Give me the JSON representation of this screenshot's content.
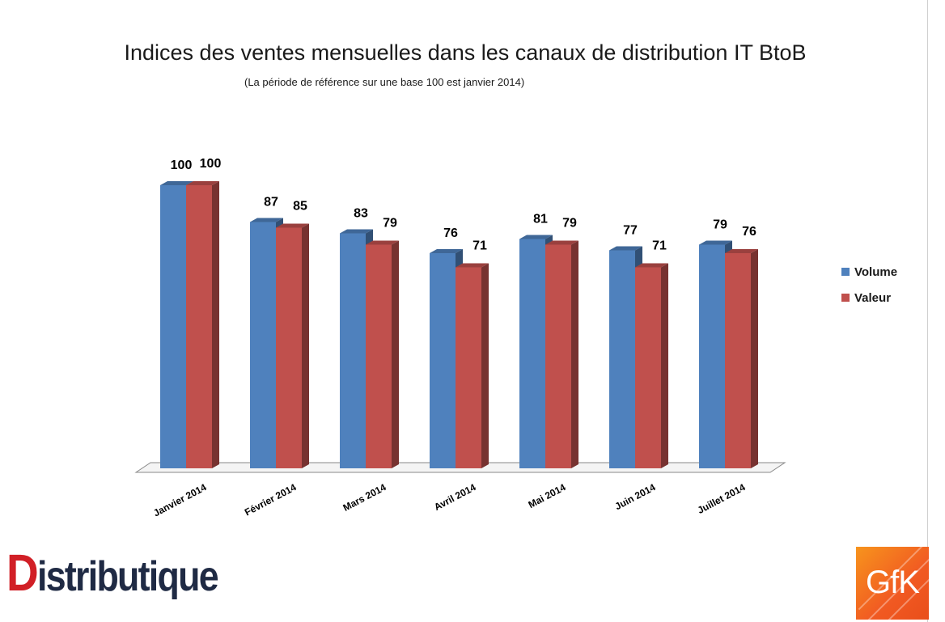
{
  "chart_data": {
    "type": "bar",
    "title": "Indices des ventes mensuelles dans les canaux de distribution IT BtoB",
    "subtitle": "(La période de référence sur une base 100 est janvier 2014)",
    "categories": [
      "Janvier 2014",
      "Février 2014",
      "Mars 2014",
      "Avril 2014",
      "Mai 2014",
      "Juin 2014",
      "Juillet 2014"
    ],
    "series": [
      {
        "name": "Volume",
        "values": [
          100,
          87,
          83,
          76,
          81,
          77,
          79
        ],
        "color": "#4f81bd"
      },
      {
        "name": "Valeur",
        "values": [
          100,
          85,
          79,
          71,
          79,
          71,
          76
        ],
        "color": "#c0504d"
      }
    ],
    "ylim": [
      0,
      100
    ],
    "grid": false,
    "legend": "right",
    "style": "3d-column"
  },
  "logos": {
    "left": "Distributique",
    "right": "GfK"
  }
}
